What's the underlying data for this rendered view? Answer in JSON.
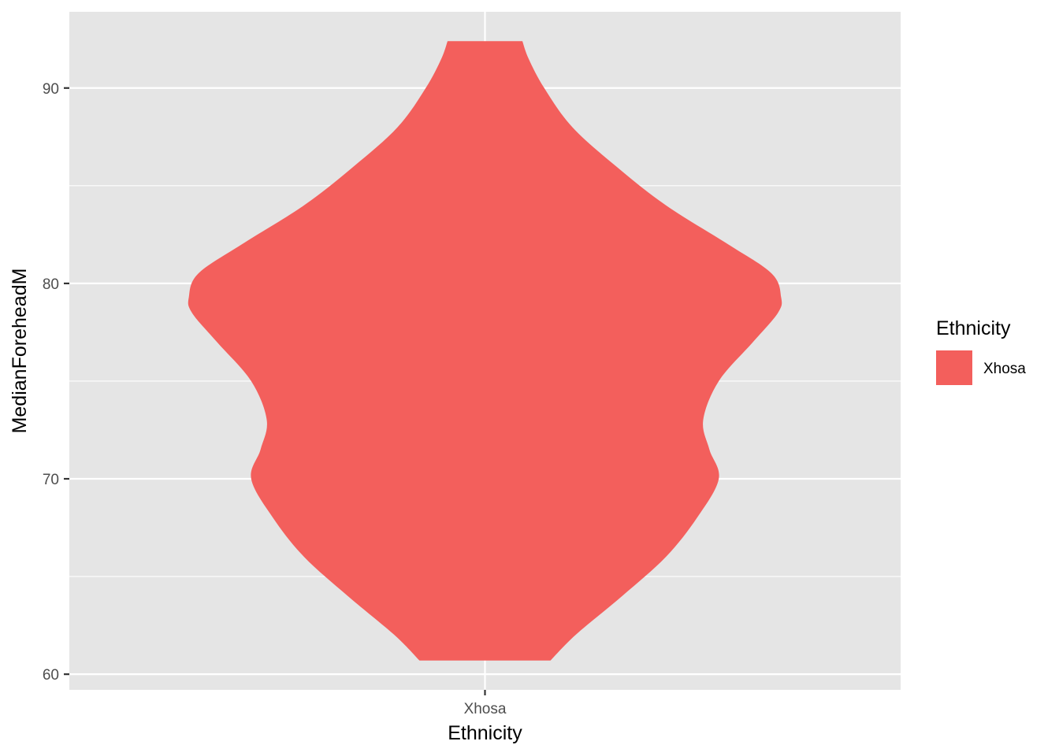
{
  "chart_data": {
    "type": "violin",
    "xlabel": "Ethnicity",
    "ylabel": "MedianForeheadM",
    "categories": [
      "Xhosa"
    ],
    "ylim": [
      59.2,
      93.9
    ],
    "yticks": [
      60,
      70,
      80,
      90
    ],
    "y_minor_ticks": [
      65,
      75,
      85
    ],
    "y_range": [
      60.7,
      92.4
    ],
    "grid": true,
    "colors": {
      "panel": "#e5e5e5",
      "grid": "#ffffff",
      "fill": "#f35f5c",
      "tick": "#333333"
    },
    "legend": {
      "title": "Ethnicity",
      "placement": "right",
      "entries": [
        {
          "label": "Xhosa",
          "color": "#f35f5c"
        }
      ]
    },
    "density": {
      "Xhosa": [
        {
          "y": 60.7,
          "w": 0.21
        },
        {
          "y": 62.0,
          "w": 0.29
        },
        {
          "y": 64.0,
          "w": 0.44
        },
        {
          "y": 66.0,
          "w": 0.58
        },
        {
          "y": 68.0,
          "w": 0.68
        },
        {
          "y": 70.0,
          "w": 0.75
        },
        {
          "y": 71.5,
          "w": 0.72
        },
        {
          "y": 73.0,
          "w": 0.7
        },
        {
          "y": 75.0,
          "w": 0.75
        },
        {
          "y": 77.0,
          "w": 0.86
        },
        {
          "y": 78.5,
          "w": 0.94
        },
        {
          "y": 79.3,
          "w": 0.95
        },
        {
          "y": 80.5,
          "w": 0.92
        },
        {
          "y": 82.0,
          "w": 0.78
        },
        {
          "y": 84.0,
          "w": 0.58
        },
        {
          "y": 86.0,
          "w": 0.42
        },
        {
          "y": 88.0,
          "w": 0.28
        },
        {
          "y": 90.0,
          "w": 0.19
        },
        {
          "y": 91.5,
          "w": 0.14
        },
        {
          "y": 92.4,
          "w": 0.12
        }
      ]
    }
  }
}
